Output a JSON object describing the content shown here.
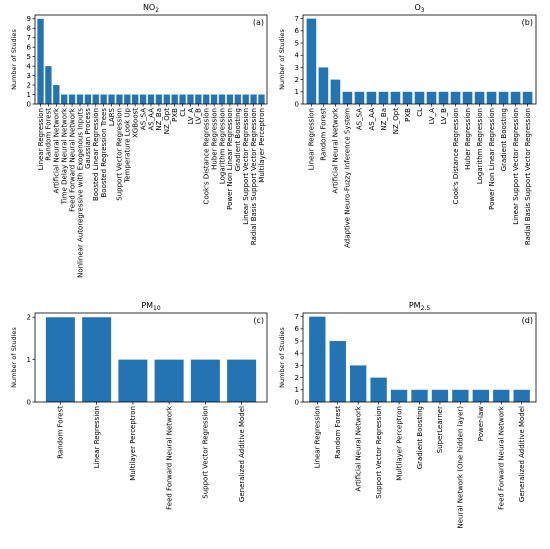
{
  "chart_data": [
    {
      "type": "bar",
      "title": "NO2",
      "title_parts": {
        "main": "NO",
        "sub": "2"
      },
      "panel_label": "(a)",
      "ylabel": "Number of Studies",
      "ylim": [
        0,
        9.4
      ],
      "yticks": [
        0,
        1,
        2,
        3,
        4,
        5,
        6,
        7,
        8,
        9
      ],
      "grid": false,
      "categories": [
        "Linear Regression",
        "Random Forest",
        "Artificial Neural Network",
        "Time Delay Neural Network",
        "Feed Forward Neural Network",
        "Nonlinear Autoregressive with Exogenous Inputs",
        "Gaussian Process",
        "Boosted Linear Regression",
        "Boosted Regression Trees",
        "LARS",
        "Support Vector Regression",
        "Temperature Look Up",
        "XGBoost",
        "AS_SA",
        "AS_AA",
        "NZ_Ba",
        "NZ_Opt",
        "PXB",
        "CL",
        "LV_A",
        "LV_B",
        "Cook's Distance Regression",
        "Huber Regression",
        "Logarithm Regression",
        "Power Non Linear Regression",
        "Gradient Boosting",
        "Linear Support Vector Regression",
        "Radial Basis Support Vector Regression",
        "Multilayer Perceptron"
      ],
      "values": [
        9,
        4,
        2,
        1,
        1,
        1,
        1,
        1,
        1,
        1,
        1,
        1,
        1,
        1,
        1,
        1,
        1,
        1,
        1,
        1,
        1,
        1,
        1,
        1,
        1,
        1,
        1,
        1,
        1
      ],
      "bar_color": "#2474b4"
    },
    {
      "type": "bar",
      "title": "O3",
      "title_parts": {
        "main": "O",
        "sub": "3"
      },
      "panel_label": "(b)",
      "ylabel": "Number of Studies",
      "ylim": [
        0,
        7.3
      ],
      "yticks": [
        0,
        1,
        2,
        3,
        4,
        5,
        6,
        7
      ],
      "grid": false,
      "categories": [
        "Linear Regression",
        "Random Forest",
        "Artificial Neural Network",
        "Adaptive Neuro-Fuzzy Inference System",
        "AS_SA",
        "AS_AA",
        "NZ_Ba",
        "NZ_Opt",
        "PXB",
        "CL",
        "LV_A",
        "LV_B",
        "Cook's Distance Regression",
        "Huber Regression",
        "Logarithm Regression",
        "Power Non Linear Regression",
        "Gradient Boosting",
        "Linear Support Vector Regression",
        "Radial Basis Support Vector Regression"
      ],
      "values": [
        7,
        3,
        2,
        1,
        1,
        1,
        1,
        1,
        1,
        1,
        1,
        1,
        1,
        1,
        1,
        1,
        1,
        1,
        1
      ],
      "bar_color": "#2474b4"
    },
    {
      "type": "bar",
      "title": "PM10",
      "title_parts": {
        "main": "PM",
        "sub": "10"
      },
      "panel_label": "(c)",
      "ylabel": "Number of Studies",
      "ylim": [
        0,
        2.1
      ],
      "yticks": [
        0,
        1,
        2
      ],
      "grid": false,
      "categories": [
        "Random Forest",
        "Linear Regression",
        "Multilayer Perceptron",
        "Feed Forward Neural Network",
        "Support Vector Regression",
        "Generalized Additive Model"
      ],
      "values": [
        2,
        2,
        1,
        1,
        1,
        1
      ],
      "bar_color": "#2474b4"
    },
    {
      "type": "bar",
      "title": "PM2.5",
      "title_parts": {
        "main": "PM",
        "sub": "2.5"
      },
      "panel_label": "(d)",
      "ylabel": "Number of Studies",
      "ylim": [
        0,
        7.3
      ],
      "yticks": [
        0,
        1,
        2,
        3,
        4,
        5,
        6,
        7
      ],
      "grid": false,
      "categories": [
        "Linear Regression",
        "Random Forest",
        "Artificial Neural Network",
        "Support Vector Regression",
        "Multilayer Perceptron",
        "Gradient Boosting",
        "SuperLearner",
        "Neural Network (One hidden layer)",
        "Power-law",
        "Feed Forward Neural Network",
        "Generalized Additive Model"
      ],
      "values": [
        7,
        5,
        3,
        2,
        1,
        1,
        1,
        1,
        1,
        1,
        1
      ],
      "bar_color": "#2474b4"
    }
  ]
}
